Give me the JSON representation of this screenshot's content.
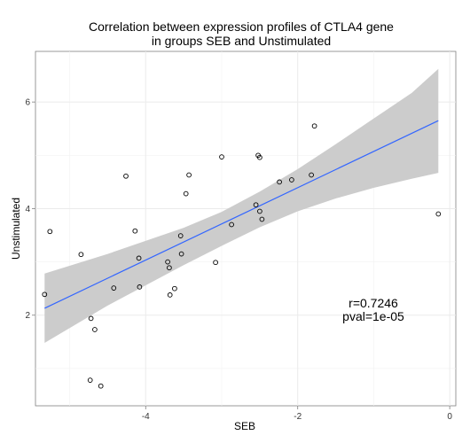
{
  "chart_data": {
    "type": "scatter",
    "title_lines": [
      "Correlation between expression profiles of CTLA4 gene",
      "in groups SEB and Unstimulated"
    ],
    "xlabel": "SEB",
    "ylabel": "Unstimulated",
    "xlim": [
      -5.45,
      0.08
    ],
    "ylim": [
      0.3,
      6.95
    ],
    "x_ticks": [
      -4,
      -2,
      0
    ],
    "y_ticks": [
      2,
      4,
      6
    ],
    "grid": true,
    "points": [
      {
        "x": -5.33,
        "y": 2.39
      },
      {
        "x": -5.26,
        "y": 3.57
      },
      {
        "x": -4.85,
        "y": 3.14
      },
      {
        "x": -4.72,
        "y": 1.94
      },
      {
        "x": -4.67,
        "y": 1.73
      },
      {
        "x": -4.73,
        "y": 0.78
      },
      {
        "x": -4.59,
        "y": 0.67
      },
      {
        "x": -4.42,
        "y": 2.51
      },
      {
        "x": -4.26,
        "y": 4.61
      },
      {
        "x": -4.14,
        "y": 3.58
      },
      {
        "x": -4.09,
        "y": 3.07
      },
      {
        "x": -4.08,
        "y": 2.53
      },
      {
        "x": -3.71,
        "y": 3.0
      },
      {
        "x": -3.69,
        "y": 2.89
      },
      {
        "x": -3.68,
        "y": 2.38
      },
      {
        "x": -3.62,
        "y": 2.5
      },
      {
        "x": -3.54,
        "y": 3.49
      },
      {
        "x": -3.53,
        "y": 3.15
      },
      {
        "x": -3.47,
        "y": 4.28
      },
      {
        "x": -3.43,
        "y": 4.63
      },
      {
        "x": -3.08,
        "y": 2.99
      },
      {
        "x": -3.0,
        "y": 4.97
      },
      {
        "x": -2.87,
        "y": 3.7
      },
      {
        "x": -2.55,
        "y": 4.07
      },
      {
        "x": -2.52,
        "y": 5.0
      },
      {
        "x": -2.5,
        "y": 4.96
      },
      {
        "x": -2.5,
        "y": 3.95
      },
      {
        "x": -2.47,
        "y": 3.8
      },
      {
        "x": -2.24,
        "y": 4.5
      },
      {
        "x": -2.08,
        "y": 4.54
      },
      {
        "x": -1.82,
        "y": 4.63
      },
      {
        "x": -1.78,
        "y": 5.55
      },
      {
        "x": -0.15,
        "y": 3.9
      }
    ],
    "fit_line": {
      "x": [
        -5.33,
        -0.15
      ],
      "y": [
        2.13,
        5.65
      ],
      "color": "#3366ff"
    },
    "confidence_band": {
      "x": [
        -5.33,
        -4.5,
        -3.5,
        -3.0,
        -2.5,
        -2.0,
        -1.5,
        -1.0,
        -0.5,
        -0.15
      ],
      "lower": [
        1.48,
        2.18,
        2.94,
        3.3,
        3.65,
        3.95,
        4.19,
        4.39,
        4.56,
        4.67
      ],
      "upper": [
        2.78,
        3.15,
        3.64,
        3.94,
        4.32,
        4.74,
        5.21,
        5.69,
        6.17,
        6.62
      ],
      "color": "#cccccc"
    },
    "annotations": [
      "r=0.7246",
      "pval=1e-05"
    ],
    "point_style": "open-circle"
  }
}
